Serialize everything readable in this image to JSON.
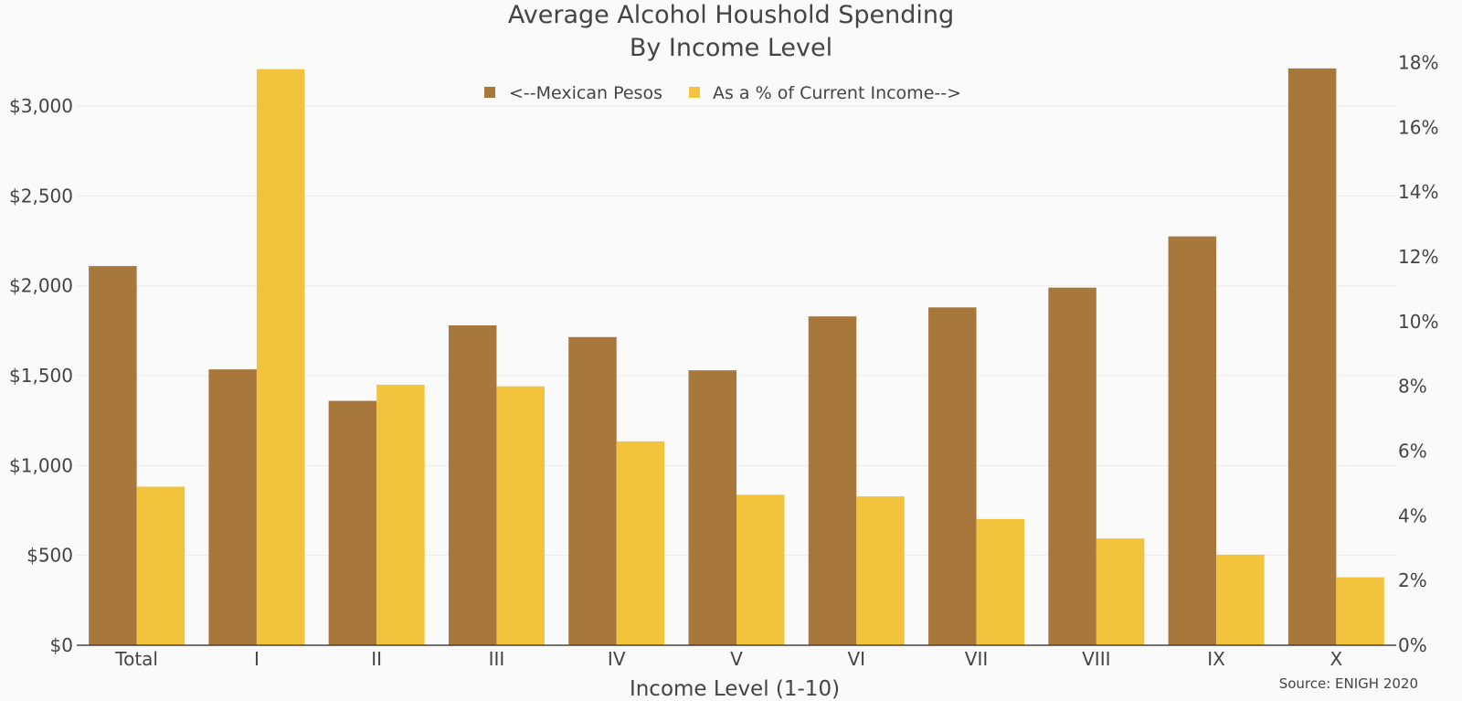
{
  "chart_data": {
    "type": "bar",
    "title": "Average Alcohol Houshold Spending",
    "subtitle": "By Income Level",
    "xlabel": "Income Level (1-10)",
    "categories": [
      "Total",
      "I",
      "II",
      "III",
      "IV",
      "V",
      "VI",
      "VII",
      "VIII",
      "IX",
      "X"
    ],
    "series": [
      {
        "name": "<--Mexican Pesos",
        "axis": "left",
        "color": "#a8773b",
        "values": [
          2110,
          1535,
          1360,
          1780,
          1715,
          1530,
          1830,
          1880,
          1990,
          2275,
          3210
        ]
      },
      {
        "name": "As a % of Current Income-->",
        "axis": "right",
        "color": "#f2c43d",
        "values": [
          4.9,
          17.8,
          8.05,
          8.0,
          6.3,
          4.65,
          4.6,
          3.9,
          3.3,
          2.8,
          2.1
        ]
      }
    ],
    "y_left": {
      "ylim": [
        0,
        3260
      ],
      "ticks": [
        0,
        500,
        1000,
        1500,
        2000,
        2500,
        3000
      ],
      "tick_labels": [
        "$0",
        "$500",
        "$1,000",
        "$1,500",
        "$2,000",
        "$2,500",
        "$3,000"
      ]
    },
    "y_right": {
      "ylim": [
        0,
        18.1
      ],
      "ticks": [
        0,
        2,
        4,
        6,
        8,
        10,
        12,
        14,
        16,
        18
      ],
      "tick_labels": [
        "0%",
        "2%",
        "4%",
        "6%",
        "8%",
        "10%",
        "12%",
        "14%",
        "16%",
        "18%"
      ]
    },
    "grid": true,
    "legend_position": "top-center",
    "annotation": "Source: ENIGH 2020",
    "background": "#fafafa",
    "gridcolor": "#ebebeb"
  }
}
